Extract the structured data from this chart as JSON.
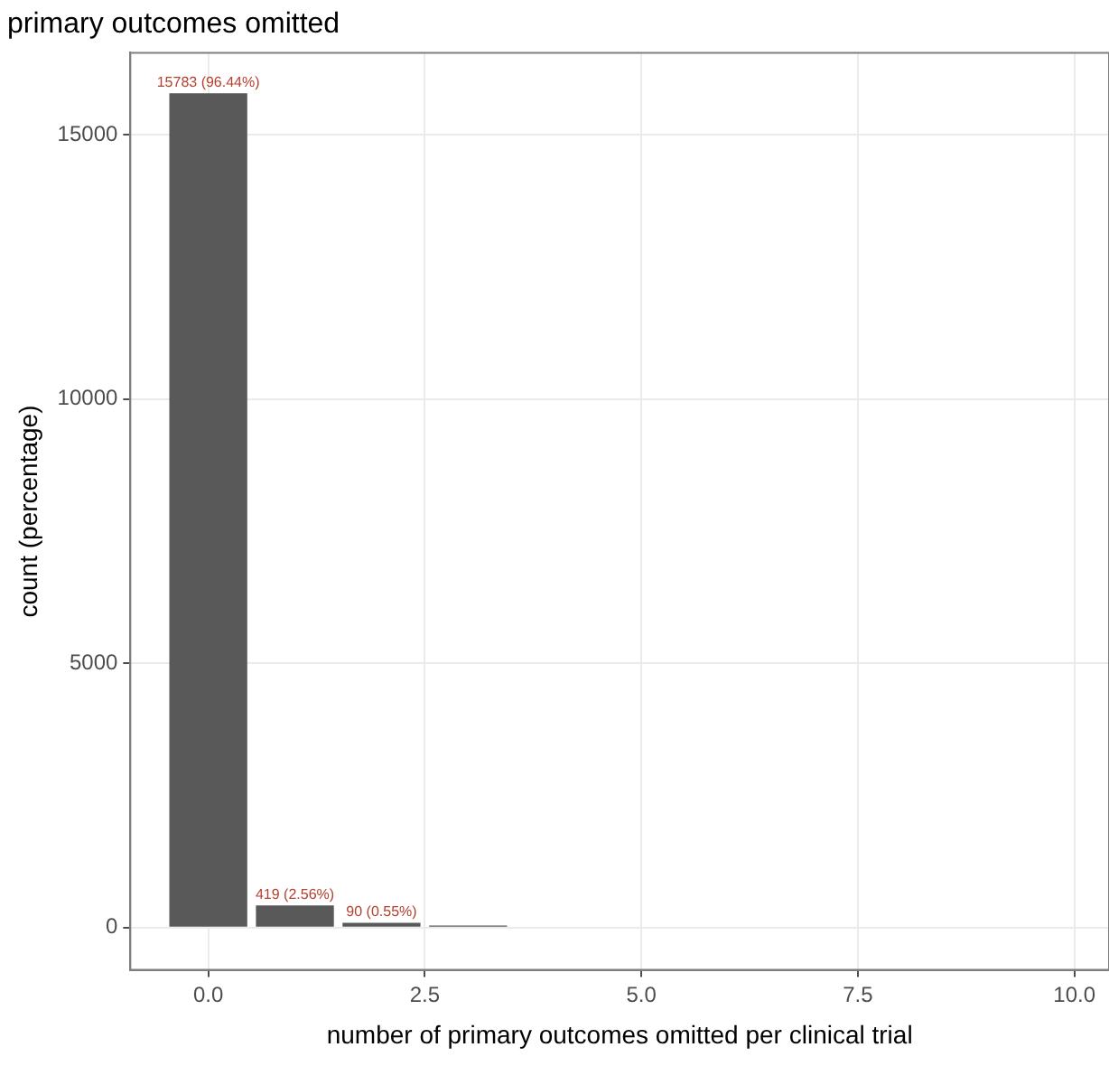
{
  "chart_data": {
    "type": "bar",
    "title": "primary outcomes omitted",
    "xlabel": "number of primary outcomes omitted per clinical trial",
    "ylabel": "count (percentage)",
    "x": [
      0,
      1,
      2,
      3
    ],
    "values": [
      15783,
      419,
      90,
      40
    ],
    "value_labels": [
      "15783 (96.44%)",
      "419 (2.56%)",
      "90 (0.55%)",
      null
    ],
    "color": "#595959",
    "xlim": [
      -0.9,
      10.4
    ],
    "xticks": [
      {
        "value": 0,
        "label": "0.0"
      },
      {
        "value": 2.5,
        "label": "2.5"
      },
      {
        "value": 5,
        "label": "5.0"
      },
      {
        "value": 7.5,
        "label": "7.5"
      },
      {
        "value": 10,
        "label": "10.0"
      }
    ],
    "ylim": [
      -800,
      16550
    ],
    "yticks": [
      0,
      5000,
      10000,
      15000
    ],
    "grid": true
  }
}
